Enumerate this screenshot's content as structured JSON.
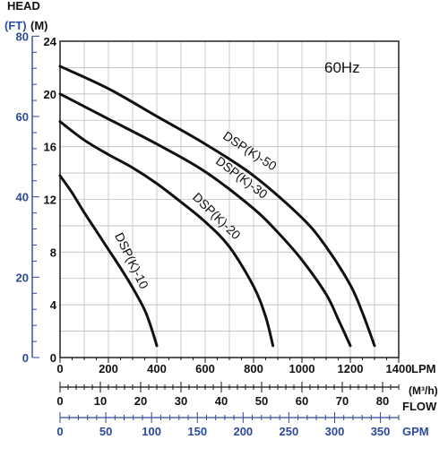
{
  "chart_data": {
    "type": "line",
    "title": "",
    "annotation": "60Hz",
    "xlabel": "LPM",
    "ylabel_m": "(M)",
    "ylabel_ft": "(FT)",
    "head_label": "HEAD",
    "flow_label": "FLOW",
    "xlim": [
      0,
      1400
    ],
    "ylim": [
      0,
      24
    ],
    "grid": true,
    "x_ticks": [
      "0",
      "200",
      "400",
      "600",
      "800",
      "1000",
      "1200",
      "1400"
    ],
    "y_ticks_m": [
      "0",
      "4",
      "8",
      "12",
      "16",
      "20",
      "24"
    ],
    "y_ticks_ft": [
      "0",
      "20",
      "40",
      "60",
      "80"
    ],
    "m3h_axis": {
      "label": "(M³/h)",
      "ticks": [
        "0",
        "10",
        "20",
        "30",
        "40",
        "50",
        "60",
        "70",
        "80"
      ],
      "max": 84
    },
    "gpm_axis": {
      "label": "GPM",
      "ticks": [
        "0",
        "50",
        "100",
        "150",
        "200",
        "250",
        "300",
        "350"
      ],
      "max": 370
    },
    "colors": {
      "curve": "#111111",
      "grid": "#bdbdbd",
      "axis": "#111111",
      "feet_axis": "#2d4a9a",
      "gpm_axis": "#2d4a9a"
    },
    "series": [
      {
        "name": "DSP(K)-10",
        "x": [
          0,
          50,
          100,
          150,
          200,
          250,
          300,
          350,
          380,
          400
        ],
        "y": [
          13.8,
          12.5,
          11.0,
          9.6,
          8.2,
          6.8,
          5.3,
          3.6,
          2.1,
          0.9
        ]
      },
      {
        "name": "DSP(K)-20",
        "x": [
          0,
          100,
          200,
          300,
          400,
          500,
          600,
          700,
          800,
          850,
          880
        ],
        "y": [
          17.9,
          16.5,
          15.4,
          14.4,
          13.2,
          11.8,
          10.3,
          8.4,
          5.4,
          3.1,
          0.9
        ]
      },
      {
        "name": "DSP(K)-30",
        "x": [
          0,
          200,
          400,
          600,
          800,
          900,
          1000,
          1100,
          1150,
          1200
        ],
        "y": [
          20.0,
          18.1,
          16.2,
          14.1,
          11.3,
          9.5,
          7.4,
          4.8,
          2.9,
          0.9
        ]
      },
      {
        "name": "DSP(K)-50",
        "x": [
          0,
          200,
          400,
          600,
          800,
          1000,
          1100,
          1200,
          1250,
          1300
        ],
        "y": [
          22.1,
          20.4,
          18.3,
          16.2,
          13.8,
          10.6,
          8.4,
          5.5,
          3.4,
          0.9
        ]
      }
    ]
  }
}
